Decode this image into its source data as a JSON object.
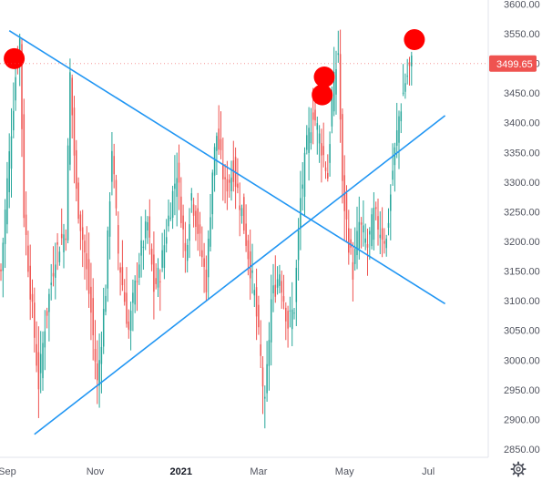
{
  "chart_data": {
    "type": "candlestick",
    "grid": false,
    "legend": "none",
    "ylim": [
      2840,
      3610
    ],
    "y_ticks": [
      "3600.00",
      "3550.00",
      "3500.00",
      "3450.00",
      "3400.00",
      "3350.00",
      "3300.00",
      "3250.00",
      "3200.00",
      "3150.00",
      "3100.00",
      "3050.00",
      "3000.00",
      "2950.00",
      "2900.00",
      "2850.00"
    ],
    "y_tick_values": [
      3600,
      3550,
      3500,
      3450,
      3400,
      3350,
      3300,
      3250,
      3200,
      3150,
      3100,
      3050,
      3000,
      2950,
      2900,
      2850
    ],
    "x_ticks": [
      {
        "label": "Sep",
        "bar": 3,
        "bold": false
      },
      {
        "label": "Nov",
        "bar": 45,
        "bold": false
      },
      {
        "label": "2021",
        "bar": 86,
        "bold": true
      },
      {
        "label": "Mar",
        "bar": 123,
        "bold": false
      },
      {
        "label": "May",
        "bar": 164,
        "bold": false
      },
      {
        "label": "Jul",
        "bar": 204,
        "bold": false
      }
    ],
    "last_price": {
      "label": "3499.65",
      "value": 3499.65
    },
    "colors": {
      "up": "#26a69a",
      "down": "#ef5350",
      "trendline": "#2196f3",
      "marker": "#ff0000",
      "price_tag": "#ef5350",
      "axis_text": "#50535e"
    },
    "trendlines": [
      {
        "from": {
          "bar": 4,
          "price": 3555
        },
        "to": {
          "bar": 212,
          "price": 3095
        }
      },
      {
        "from": {
          "bar": 16,
          "price": 2875
        },
        "to": {
          "bar": 212,
          "price": 3412
        }
      }
    ],
    "markers": [
      {
        "bar": 2,
        "price": 3508
      },
      {
        "bar": 150,
        "price": 3477
      },
      {
        "bar": 149,
        "price": 3447
      },
      {
        "bar": 193,
        "price": 3540
      }
    ],
    "anchors": [
      [
        0,
        3150
      ],
      [
        3,
        3300
      ],
      [
        7,
        3480
      ],
      [
        9,
        3540
      ],
      [
        11,
        3250
      ],
      [
        14,
        3120
      ],
      [
        18,
        2960
      ],
      [
        21,
        3060
      ],
      [
        26,
        3180
      ],
      [
        31,
        3220
      ],
      [
        33,
        3480
      ],
      [
        36,
        3280
      ],
      [
        40,
        3180
      ],
      [
        43,
        3080
      ],
      [
        46,
        2960
      ],
      [
        50,
        3120
      ],
      [
        53,
        3360
      ],
      [
        56,
        3180
      ],
      [
        61,
        3050
      ],
      [
        66,
        3170
      ],
      [
        70,
        3230
      ],
      [
        73,
        3120
      ],
      [
        76,
        3150
      ],
      [
        80,
        3240
      ],
      [
        84,
        3320
      ],
      [
        88,
        3180
      ],
      [
        91,
        3280
      ],
      [
        94,
        3220
      ],
      [
        98,
        3130
      ],
      [
        101,
        3320
      ],
      [
        103,
        3380
      ],
      [
        107,
        3290
      ],
      [
        111,
        3320
      ],
      [
        115,
        3250
      ],
      [
        118,
        3180
      ],
      [
        121,
        3110
      ],
      [
        124,
        3000
      ],
      [
        126,
        2920
      ],
      [
        129,
        3100
      ],
      [
        133,
        3150
      ],
      [
        137,
        3060
      ],
      [
        140,
        3090
      ],
      [
        143,
        3270
      ],
      [
        146,
        3360
      ],
      [
        149,
        3420
      ],
      [
        153,
        3360
      ],
      [
        156,
        3310
      ],
      [
        158,
        3440
      ],
      [
        161,
        3520
      ],
      [
        163,
        3290
      ],
      [
        166,
        3200
      ],
      [
        168,
        3150
      ],
      [
        171,
        3230
      ],
      [
        175,
        3190
      ],
      [
        178,
        3245
      ],
      [
        181,
        3220
      ],
      [
        184,
        3200
      ],
      [
        187,
        3320
      ],
      [
        190,
        3410
      ],
      [
        193,
        3470
      ],
      [
        196,
        3500
      ]
    ]
  }
}
